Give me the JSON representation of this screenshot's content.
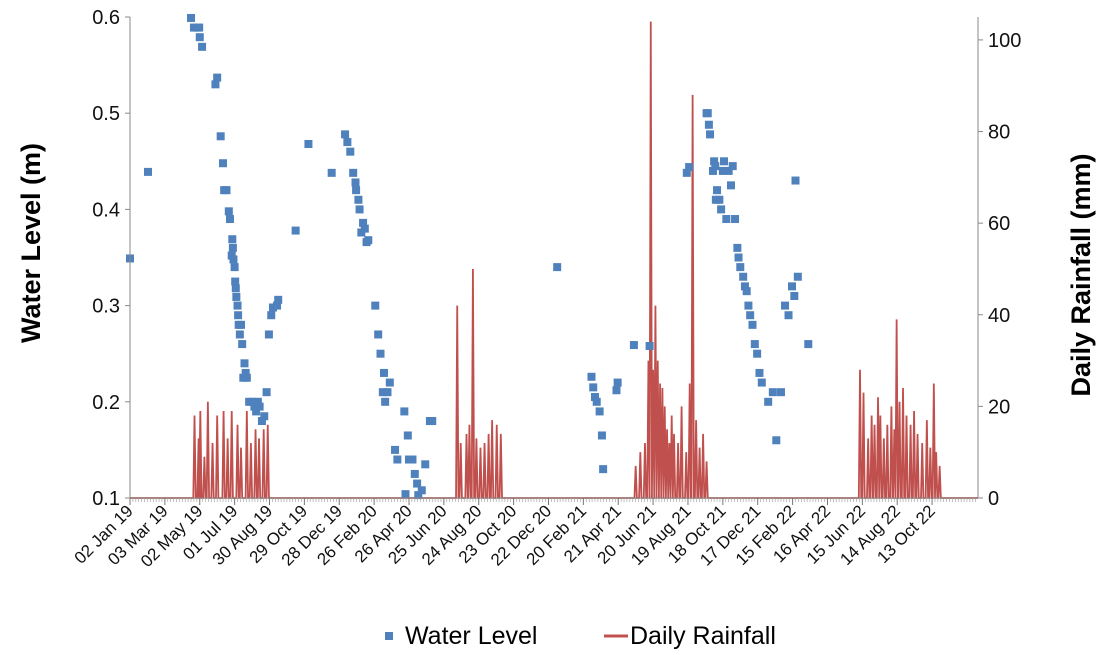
{
  "chart_data": {
    "type": "scatter+line",
    "x_start_date": "2019-01-02",
    "x_end_date": "2022-12-31",
    "x_tick_labels": [
      "02 Jan 19",
      "03 Mar 19",
      "02 May 19",
      "01 Jul 19",
      "30 Aug 19",
      "29 Oct 19",
      "28 Dec 19",
      "26 Feb 20",
      "26 Apr 20",
      "25 Jun 20",
      "24 Aug 20",
      "23 Oct 20",
      "22 Dec 20",
      "20 Feb 21",
      "21 Apr 21",
      "20 Jun 21",
      "19 Aug 21",
      "18 Oct 21",
      "17 Dec 21",
      "15 Feb 22",
      "16 Apr 22",
      "15 Jun 22",
      "14 Aug 22",
      "13 Oct 22"
    ],
    "ylabel_left": "Water Level (m)",
    "ylabel_right": "Daily Rainfall (mm)",
    "ylim_left": [
      0.1,
      0.6
    ],
    "ylim_right": [
      0,
      105
    ],
    "yticks_left": [
      "0.1",
      "0.2",
      "0.3",
      "0.4",
      "0.5",
      "0.6"
    ],
    "yticks_right": [
      "0",
      "20",
      "40",
      "60",
      "80",
      "100"
    ],
    "legend": {
      "position": "bottom",
      "items": [
        "Water Level",
        "Daily Rainfall"
      ]
    },
    "colors": {
      "water_level": "#4F81BD",
      "rainfall": "#C0504D"
    },
    "series": [
      {
        "name": "Water Level",
        "axis": "left",
        "points": [
          [
            "2019-01-02",
            0.349
          ],
          [
            "2019-02-02",
            0.439
          ],
          [
            "2019-04-17",
            0.599
          ],
          [
            "2019-04-22",
            0.589
          ],
          [
            "2019-04-27",
            0.589
          ],
          [
            "2019-05-02",
            0.579
          ],
          [
            "2019-05-06",
            0.569
          ],
          [
            "2019-05-01",
            0.589
          ],
          [
            "2019-05-29",
            0.53
          ],
          [
            "2019-06-01",
            0.537
          ],
          [
            "2019-06-07",
            0.476
          ],
          [
            "2019-06-11",
            0.448
          ],
          [
            "2019-06-13",
            0.42
          ],
          [
            "2019-06-17",
            0.42
          ],
          [
            "2019-06-21",
            0.398
          ],
          [
            "2019-06-23",
            0.39
          ],
          [
            "2019-06-26",
            0.352
          ],
          [
            "2019-06-27",
            0.369
          ],
          [
            "2019-06-28",
            0.36
          ],
          [
            "2019-06-29",
            0.348
          ],
          [
            "2019-07-01",
            0.34
          ],
          [
            "2019-07-02",
            0.325
          ],
          [
            "2019-07-03",
            0.318
          ],
          [
            "2019-07-04",
            0.309
          ],
          [
            "2019-07-06",
            0.3
          ],
          [
            "2019-07-07",
            0.29
          ],
          [
            "2019-07-08",
            0.28
          ],
          [
            "2019-07-10",
            0.27
          ],
          [
            "2019-07-12",
            0.28
          ],
          [
            "2019-07-14",
            0.26
          ],
          [
            "2019-07-16",
            0.225
          ],
          [
            "2019-07-18",
            0.24
          ],
          [
            "2019-07-20",
            0.23
          ],
          [
            "2019-07-22",
            0.225
          ],
          [
            "2019-07-26",
            0.2
          ],
          [
            "2019-08-01",
            0.2
          ],
          [
            "2019-08-04",
            0.195
          ],
          [
            "2019-08-07",
            0.19
          ],
          [
            "2019-08-10",
            0.2
          ],
          [
            "2019-08-13",
            0.195
          ],
          [
            "2019-08-17",
            0.18
          ],
          [
            "2019-08-21",
            0.185
          ],
          [
            "2019-08-25",
            0.21
          ],
          [
            "2019-08-29",
            0.27
          ],
          [
            "2019-09-02",
            0.29
          ],
          [
            "2019-09-05",
            0.298
          ],
          [
            "2019-09-12",
            0.3
          ],
          [
            "2019-09-14",
            0.306
          ],
          [
            "2019-10-14",
            0.378
          ],
          [
            "2019-11-05",
            0.468
          ],
          [
            "2019-12-15",
            0.438
          ],
          [
            "2020-01-07",
            0.478
          ],
          [
            "2020-01-11",
            0.47
          ],
          [
            "2020-01-16",
            0.46
          ],
          [
            "2020-01-21",
            0.438
          ],
          [
            "2020-01-25",
            0.428
          ],
          [
            "2020-01-26",
            0.42
          ],
          [
            "2020-01-30",
            0.41
          ],
          [
            "2020-02-01",
            0.4
          ],
          [
            "2020-02-04",
            0.376
          ],
          [
            "2020-02-07",
            0.386
          ],
          [
            "2020-02-10",
            0.38
          ],
          [
            "2020-02-13",
            0.366
          ],
          [
            "2020-02-16",
            0.368
          ],
          [
            "2020-02-28",
            0.3
          ],
          [
            "2020-03-04",
            0.27
          ],
          [
            "2020-03-08",
            0.25
          ],
          [
            "2020-03-12",
            0.21
          ],
          [
            "2020-03-16",
            0.2
          ],
          [
            "2020-03-14",
            0.23
          ],
          [
            "2020-03-20",
            0.21
          ],
          [
            "2020-03-24",
            0.22
          ],
          [
            "2020-04-02",
            0.15
          ],
          [
            "2020-04-06",
            0.14
          ],
          [
            "2020-04-18",
            0.19
          ],
          [
            "2020-04-24",
            0.165
          ],
          [
            "2020-04-26",
            0.14
          ],
          [
            "2020-04-20",
            0.104
          ],
          [
            "2020-05-02",
            0.14
          ],
          [
            "2020-05-06",
            0.125
          ],
          [
            "2020-05-10",
            0.115
          ],
          [
            "2020-05-12",
            0.103
          ],
          [
            "2020-05-18",
            0.108
          ],
          [
            "2020-05-24",
            0.135
          ],
          [
            "2020-06-01",
            0.18
          ],
          [
            "2020-06-05",
            0.18
          ],
          [
            "2021-01-06",
            0.34
          ],
          [
            "2021-03-06",
            0.226
          ],
          [
            "2021-03-09",
            0.215
          ],
          [
            "2021-03-12",
            0.205
          ],
          [
            "2021-03-15",
            0.2
          ],
          [
            "2021-03-20",
            0.19
          ],
          [
            "2021-03-24",
            0.165
          ],
          [
            "2021-03-26",
            0.13
          ],
          [
            "2021-04-18",
            0.212
          ],
          [
            "2021-04-20",
            0.22
          ],
          [
            "2021-05-18",
            0.259
          ],
          [
            "2021-06-14",
            0.258
          ],
          [
            "2021-08-17",
            0.438
          ],
          [
            "2021-08-21",
            0.444
          ],
          [
            "2021-09-22",
            0.5
          ],
          [
            "2021-09-24",
            0.488
          ],
          [
            "2021-09-26",
            0.478
          ],
          [
            "2021-09-20",
            0.5
          ],
          [
            "2021-10-01",
            0.44
          ],
          [
            "2021-10-03",
            0.45
          ],
          [
            "2021-10-05",
            0.445
          ],
          [
            "2021-10-06",
            0.41
          ],
          [
            "2021-10-08",
            0.42
          ],
          [
            "2021-10-12",
            0.41
          ],
          [
            "2021-10-15",
            0.4
          ],
          [
            "2021-10-18",
            0.44
          ],
          [
            "2021-10-20",
            0.45
          ],
          [
            "2021-10-24",
            0.39
          ],
          [
            "2021-10-28",
            0.44
          ],
          [
            "2021-11-01",
            0.425
          ],
          [
            "2021-11-04",
            0.445
          ],
          [
            "2021-11-08",
            0.39
          ],
          [
            "2021-11-12",
            0.36
          ],
          [
            "2021-11-14",
            0.35
          ],
          [
            "2021-11-17",
            0.34
          ],
          [
            "2021-11-22",
            0.33
          ],
          [
            "2021-11-25",
            0.32
          ],
          [
            "2021-11-28",
            0.315
          ],
          [
            "2021-12-01",
            0.3
          ],
          [
            "2021-12-04",
            0.29
          ],
          [
            "2021-12-08",
            0.28
          ],
          [
            "2021-12-12",
            0.26
          ],
          [
            "2021-12-16",
            0.25
          ],
          [
            "2021-12-20",
            0.23
          ],
          [
            "2021-12-24",
            0.22
          ],
          [
            "2022-01-04",
            0.2
          ],
          [
            "2022-01-12",
            0.21
          ],
          [
            "2022-01-18",
            0.16
          ],
          [
            "2022-01-26",
            0.21
          ],
          [
            "2022-02-02",
            0.3
          ],
          [
            "2022-02-08",
            0.29
          ],
          [
            "2022-02-14",
            0.32
          ],
          [
            "2022-02-18",
            0.31
          ],
          [
            "2022-02-20",
            0.43
          ],
          [
            "2022-02-24",
            0.33
          ],
          [
            "2022-03-14",
            0.26
          ]
        ]
      },
      {
        "name": "Daily Rainfall",
        "axis": "right",
        "events": [
          [
            "2019-04-23",
            18
          ],
          [
            "2019-04-30",
            13
          ],
          [
            "2019-05-03",
            19
          ],
          [
            "2019-05-10",
            9
          ],
          [
            "2019-05-16",
            21
          ],
          [
            "2019-05-24",
            12
          ],
          [
            "2019-06-01",
            18
          ],
          [
            "2019-06-12",
            19
          ],
          [
            "2019-06-19",
            13
          ],
          [
            "2019-06-26",
            19
          ],
          [
            "2019-07-06",
            16
          ],
          [
            "2019-07-12",
            11
          ],
          [
            "2019-07-22",
            19
          ],
          [
            "2019-07-29",
            12
          ],
          [
            "2019-08-06",
            15
          ],
          [
            "2019-08-12",
            13
          ],
          [
            "2019-08-20",
            15
          ],
          [
            "2019-08-27",
            16
          ],
          [
            "2020-07-18",
            42
          ],
          [
            "2020-07-24",
            12
          ],
          [
            "2020-08-03",
            14
          ],
          [
            "2020-08-08",
            16
          ],
          [
            "2020-08-14",
            50
          ],
          [
            "2020-08-20",
            13
          ],
          [
            "2020-08-27",
            11
          ],
          [
            "2020-09-03",
            12
          ],
          [
            "2020-09-10",
            14
          ],
          [
            "2020-09-16",
            17
          ],
          [
            "2020-09-24",
            16
          ],
          [
            "2020-10-01",
            14
          ],
          [
            "2021-05-21",
            7
          ],
          [
            "2021-05-29",
            10
          ],
          [
            "2021-06-06",
            12
          ],
          [
            "2021-06-12",
            30
          ],
          [
            "2021-06-16",
            104
          ],
          [
            "2021-06-20",
            28
          ],
          [
            "2021-06-24",
            42
          ],
          [
            "2021-06-28",
            30
          ],
          [
            "2021-07-02",
            25
          ],
          [
            "2021-07-06",
            24
          ],
          [
            "2021-07-10",
            20
          ],
          [
            "2021-07-14",
            15
          ],
          [
            "2021-07-18",
            12
          ],
          [
            "2021-07-22",
            18
          ],
          [
            "2021-07-26",
            14
          ],
          [
            "2021-08-02",
            12
          ],
          [
            "2021-08-08",
            20
          ],
          [
            "2021-08-16",
            10
          ],
          [
            "2021-08-22",
            25
          ],
          [
            "2021-08-27",
            88
          ],
          [
            "2021-09-02",
            17
          ],
          [
            "2021-09-08",
            11
          ],
          [
            "2021-09-14",
            14
          ],
          [
            "2021-09-20",
            8
          ],
          [
            "2022-06-11",
            28
          ],
          [
            "2022-06-17",
            23
          ],
          [
            "2022-06-25",
            13
          ],
          [
            "2022-07-01",
            18
          ],
          [
            "2022-07-06",
            16
          ],
          [
            "2022-07-12",
            22
          ],
          [
            "2022-07-16",
            18
          ],
          [
            "2022-07-22",
            13
          ],
          [
            "2022-07-28",
            16
          ],
          [
            "2022-08-04",
            20
          ],
          [
            "2022-08-09",
            15
          ],
          [
            "2022-08-13",
            39
          ],
          [
            "2022-08-18",
            21
          ],
          [
            "2022-08-24",
            24
          ],
          [
            "2022-08-30",
            18
          ],
          [
            "2022-09-06",
            16
          ],
          [
            "2022-09-12",
            19
          ],
          [
            "2022-09-18",
            14
          ],
          [
            "2022-09-26",
            12
          ],
          [
            "2022-10-04",
            17
          ],
          [
            "2022-10-10",
            11
          ],
          [
            "2022-10-16",
            25
          ],
          [
            "2022-10-20",
            10
          ],
          [
            "2022-10-26",
            7
          ]
        ]
      }
    ]
  }
}
